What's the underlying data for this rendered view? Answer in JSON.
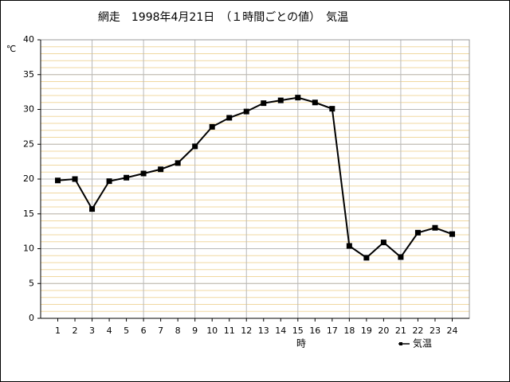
{
  "chart_data": {
    "type": "line",
    "title": "網走　1998年4月21日　（１時間ごとの値）　気温",
    "y_label": "℃",
    "x_label": "時",
    "x": [
      1,
      2,
      3,
      4,
      5,
      6,
      7,
      8,
      9,
      10,
      11,
      12,
      13,
      14,
      15,
      16,
      17,
      18,
      19,
      20,
      21,
      22,
      23,
      24
    ],
    "series": [
      {
        "name": "気温",
        "color": "#000000",
        "values": [
          19.8,
          20.0,
          15.7,
          19.7,
          20.2,
          20.8,
          21.4,
          22.3,
          24.7,
          27.5,
          28.8,
          29.7,
          30.9,
          31.3,
          31.7,
          31.0,
          30.1,
          10.4,
          8.7,
          10.9,
          8.8,
          12.3,
          13.0,
          12.1
        ]
      }
    ],
    "xlim": [
      0,
      25
    ],
    "xticks": [
      1,
      2,
      3,
      4,
      5,
      6,
      7,
      8,
      9,
      10,
      11,
      12,
      13,
      14,
      15,
      16,
      17,
      18,
      19,
      20,
      21,
      22,
      23,
      24
    ],
    "x_grid": [
      3,
      6,
      9,
      12,
      15,
      18,
      21,
      24
    ],
    "ylim": [
      0,
      40
    ],
    "yticks": [
      0,
      5,
      10,
      15,
      20,
      25,
      30,
      35,
      40
    ],
    "minor_grid": 1,
    "grid": true,
    "legend": "bottom-right"
  }
}
